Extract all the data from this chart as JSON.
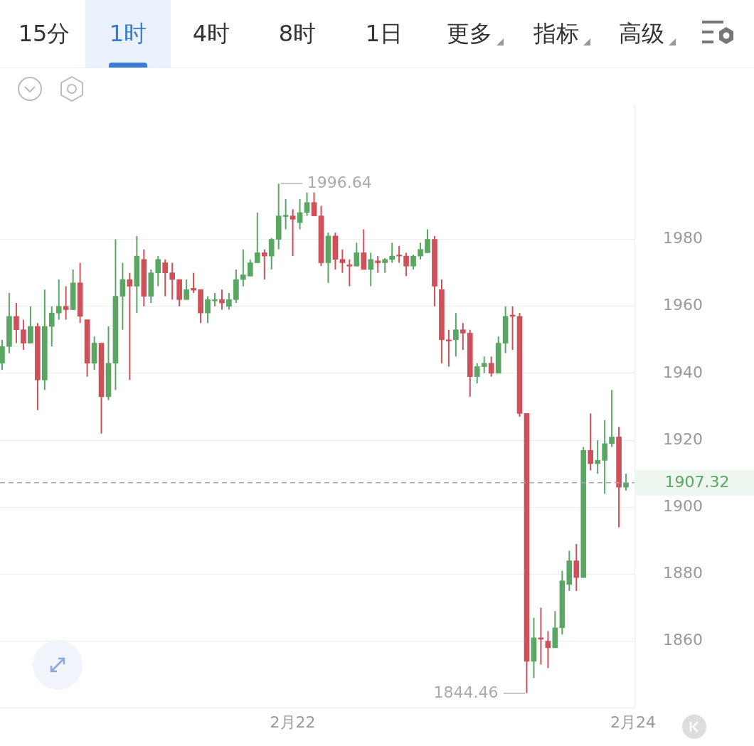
{
  "chart_data": {
    "type": "candlestick",
    "annotations": [
      "1996.64",
      "1844.46",
      "15分",
      "1时",
      "4时",
      "8时",
      "1日",
      "更多",
      "指标",
      "高级"
    ],
    "categories": [
      null,
      null,
      null,
      null,
      null,
      null,
      null,
      null,
      null,
      null,
      null,
      null,
      null,
      null,
      null,
      null,
      null,
      null,
      null,
      null,
      null,
      null,
      null,
      null,
      null,
      null,
      null,
      null,
      null,
      null,
      null,
      null,
      null,
      null,
      null,
      null,
      null,
      null,
      null,
      null,
      null,
      "2月22",
      null,
      null,
      null,
      null,
      null,
      null,
      null,
      null,
      null,
      null,
      null,
      null,
      null,
      null,
      null,
      null,
      null,
      null,
      null,
      null,
      null,
      null,
      null,
      null,
      null,
      null,
      null,
      null,
      null,
      null,
      null,
      null,
      null,
      null,
      null,
      null,
      null,
      null,
      null,
      null,
      null,
      null,
      null,
      null,
      null,
      null,
      null,
      "2月24"
    ],
    "ohlc": [
      [
        1943,
        1950,
        1941,
        1948
      ],
      [
        1948,
        1964,
        1946,
        1957
      ],
      [
        1957,
        1961,
        1949,
        1953
      ],
      [
        1953,
        1956,
        1947,
        1949
      ],
      [
        1949,
        1960,
        1949,
        1954
      ],
      [
        1954,
        1955,
        1929,
        1938
      ],
      [
        1938,
        1965,
        1935,
        1954
      ],
      [
        1954,
        1960,
        1948,
        1958
      ],
      [
        1958,
        1968,
        1956,
        1960
      ],
      [
        1960,
        1966,
        1956,
        1959
      ],
      [
        1959,
        1971,
        1959,
        1967
      ],
      [
        1967,
        1973,
        1955,
        1957
      ],
      [
        1956,
        1956,
        1939,
        1943
      ],
      [
        1943,
        1951,
        1941,
        1949
      ],
      [
        1949,
        1949,
        1922,
        1933
      ],
      [
        1933,
        1954,
        1932,
        1943
      ],
      [
        1943,
        1980,
        1935,
        1963
      ],
      [
        1963,
        1973,
        1953,
        1968
      ],
      [
        1968,
        1970,
        1938,
        1966
      ],
      [
        1966,
        1981,
        1958,
        1975
      ],
      [
        1974,
        1977,
        1960,
        1963
      ],
      [
        1963,
        1971,
        1961,
        1970
      ],
      [
        1970,
        1975,
        1966,
        1974
      ],
      [
        1973,
        1974,
        1963,
        1970
      ],
      [
        1970,
        1973,
        1962,
        1968
      ],
      [
        1968,
        1968,
        1960,
        1962
      ],
      [
        1962,
        1968,
        1962,
        1965
      ],
      [
        1965.4,
        1970,
        1964,
        1964.8
      ],
      [
        1965,
        1965,
        1955,
        1958
      ],
      [
        1958,
        1963,
        1955,
        1962
      ],
      [
        1961.6,
        1964,
        1960,
        1962
      ],
      [
        1962,
        1965,
        1959,
        1961
      ],
      [
        1960,
        1964,
        1959,
        1962
      ],
      [
        1962,
        1971,
        1961,
        1968
      ],
      [
        1968,
        1977,
        1966,
        1969.4
      ],
      [
        1969,
        1974,
        1969,
        1973
      ],
      [
        1973,
        1988,
        1973,
        1976
      ],
      [
        1976,
        1977,
        1968,
        1975
      ],
      [
        1975,
        1980.4,
        1971,
        1980
      ],
      [
        1980,
        1996.64,
        1977,
        1987
      ],
      [
        1986.8,
        1992,
        1983,
        1987.2
      ],
      [
        1987,
        1989,
        1975,
        1986
      ],
      [
        1985,
        1992,
        1983,
        1988
      ],
      [
        1988,
        1994,
        1987,
        1991
      ],
      [
        1991,
        1994,
        1987,
        1987
      ],
      [
        1987,
        1990,
        1972,
        1973
      ],
      [
        1973,
        1982,
        1967,
        1981
      ],
      [
        1981,
        1982,
        1971,
        1974
      ],
      [
        1974,
        1977,
        1970,
        1973
      ],
      [
        1972.4,
        1974,
        1966,
        1972
      ],
      [
        1972,
        1979,
        1972,
        1976
      ],
      [
        1976,
        1983,
        1971,
        1971
      ],
      [
        1971,
        1976,
        1966,
        1974
      ],
      [
        1973.6,
        1975,
        1970,
        1973
      ],
      [
        1973,
        1974.4,
        1970,
        1974
      ],
      [
        1974,
        1979,
        1973,
        1975
      ],
      [
        1975.2,
        1978,
        1973,
        1975
      ],
      [
        1975,
        1976,
        1969,
        1972
      ],
      [
        1972,
        1975.4,
        1971,
        1975
      ],
      [
        1975,
        1979,
        1974,
        1977
      ],
      [
        1976,
        1983,
        1976,
        1980
      ],
      [
        1980,
        1981,
        1960,
        1966
      ],
      [
        1965,
        1968,
        1943,
        1950
      ],
      [
        1950,
        1953,
        1942,
        1949.6
      ],
      [
        1950,
        1958,
        1945,
        1953
      ],
      [
        1953,
        1955,
        1947,
        1952
      ],
      [
        1952,
        1953,
        1933,
        1939
      ],
      [
        1939,
        1943,
        1937,
        1942
      ],
      [
        1942,
        1945,
        1940,
        1943
      ],
      [
        1943,
        1945,
        1939,
        1940
      ],
      [
        1940,
        1951,
        1940,
        1949
      ],
      [
        1949,
        1960,
        1946,
        1957
      ],
      [
        1957.4,
        1960,
        1947,
        1957
      ],
      [
        1957,
        1958,
        1927,
        1928
      ],
      [
        1928,
        1928,
        1844.46,
        1854
      ],
      [
        1854,
        1867,
        1849,
        1861
      ],
      [
        1861,
        1870,
        1853,
        1860.6
      ],
      [
        1860,
        1863,
        1852,
        1858
      ],
      [
        1858,
        1869,
        1858,
        1864
      ],
      [
        1864,
        1881,
        1862,
        1878
      ],
      [
        1877,
        1887,
        1875,
        1884
      ],
      [
        1884,
        1889,
        1875,
        1879
      ],
      [
        1879,
        1918,
        1879,
        1917
      ],
      [
        1917,
        1928,
        1911,
        1913
      ],
      [
        1913,
        1920,
        1910,
        1914
      ],
      [
        1914,
        1926,
        1904,
        1919
      ],
      [
        1919,
        1935,
        1918,
        1921
      ],
      [
        1921,
        1924,
        1894,
        1906
      ],
      [
        1906,
        1910,
        1905,
        1907.32
      ],
      null
    ],
    "colors": [
      "#5aa764",
      "#5aa764",
      "#d0505a",
      "#d0505a",
      "#5aa764",
      "#d0505a",
      "#5aa764",
      "#5aa764",
      "#5aa764",
      "#d0505a",
      "#5aa764",
      "#d0505a",
      "#d0505a",
      "#5aa764",
      "#d0505a",
      "#5aa764",
      "#5aa764",
      "#5aa764",
      "#d0505a",
      "#5aa764",
      "#d0505a",
      "#5aa764",
      "#5aa764",
      "#d0505a",
      "#d0505a",
      "#d0505a",
      "#5aa764",
      "#d0505a",
      "#d0505a",
      "#5aa764",
      "#5aa764",
      "#d0505a",
      "#5aa764",
      "#5aa764",
      "#5aa764",
      "#5aa764",
      "#5aa764",
      "#d0505a",
      "#5aa764",
      "#5aa764",
      "#5aa764",
      "#d0505a",
      "#5aa764",
      "#5aa764",
      "#d0505a",
      "#d0505a",
      "#5aa764",
      "#d0505a",
      "#d0505a",
      "#d0505a",
      "#5aa764",
      "#d0505a",
      "#5aa764",
      "#d0505a",
      "#5aa764",
      "#5aa764",
      "#d0505a",
      "#d0505a",
      "#5aa764",
      "#5aa764",
      "#5aa764",
      "#d0505a",
      "#d0505a",
      "#d0505a",
      "#5aa764",
      "#d0505a",
      "#d0505a",
      "#5aa764",
      "#5aa764",
      "#d0505a",
      "#5aa764",
      "#5aa764",
      "#d0505a",
      "#d0505a",
      "#d0505a",
      "#5aa764",
      "#d0505a",
      "#d0505a",
      "#5aa764",
      "#5aa764",
      "#5aa764",
      "#d0505a",
      "#5aa764",
      "#d0505a",
      "#5aa764",
      "#5aa764",
      "#5aa764",
      "#d0505a",
      "#5aa764",
      null
    ],
    "ylim": [
      1840,
      2020
    ],
    "yticks": [
      1860,
      1880,
      1900,
      1920,
      1940,
      1960,
      1980
    ],
    "ref_lines": [
      {
        "axis": "y",
        "value": 1907.32,
        "label": "1907.32",
        "color": "#aaaaaa",
        "line_style": "dashed"
      }
    ],
    "grid": "y",
    "legend": false
  }
}
